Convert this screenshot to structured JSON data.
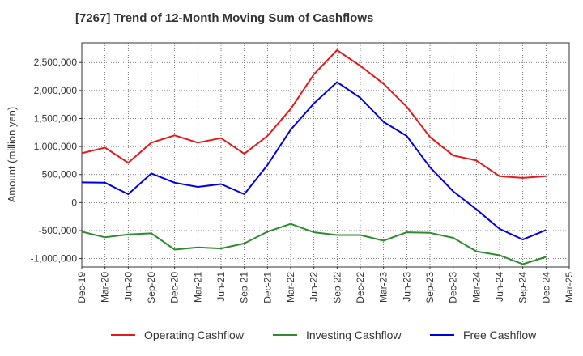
{
  "chart_data": {
    "type": "line",
    "title": "[7267]  Trend of 12-Month Moving Sum of Cashflows",
    "xlabel": "",
    "ylabel": "Amount (million yen)",
    "ylim": [
      -1150000,
      2850000
    ],
    "yticks": [
      -1000000,
      -500000,
      0,
      500000,
      1000000,
      1500000,
      2000000,
      2500000
    ],
    "ytick_labels": [
      "-1,000,000",
      "-500,000",
      "0",
      "500,000",
      "1,000,000",
      "1,500,000",
      "2,000,000",
      "2,500,000"
    ],
    "x_tick_labels": [
      "Dec-19",
      "Mar-20",
      "Jun-20",
      "Sep-20",
      "Dec-20",
      "Mar-21",
      "Jun-21",
      "Sep-21",
      "Dec-21",
      "Mar-22",
      "Jun-22",
      "Sep-22",
      "Dec-22",
      "Mar-23",
      "Jun-23",
      "Sep-23",
      "Dec-23",
      "Mar-24",
      "Jun-24",
      "Sep-24",
      "Dec-24",
      "Mar-25"
    ],
    "grid": true,
    "legend_position": "bottom",
    "series": [
      {
        "name": "Operating Cashflow",
        "color": "#e31a1c",
        "values": [
          880000,
          980000,
          710000,
          1070000,
          1200000,
          1070000,
          1150000,
          870000,
          1190000,
          1670000,
          2290000,
          2720000,
          2440000,
          2120000,
          1710000,
          1170000,
          840000,
          750000,
          470000,
          440000,
          470000
        ]
      },
      {
        "name": "Investing Cashflow",
        "color": "#2e8b2e",
        "values": [
          -520000,
          -620000,
          -570000,
          -550000,
          -840000,
          -800000,
          -820000,
          -730000,
          -520000,
          -380000,
          -530000,
          -580000,
          -580000,
          -680000,
          -530000,
          -540000,
          -630000,
          -870000,
          -940000,
          -1100000,
          -970000
        ]
      },
      {
        "name": "Free Cashflow",
        "color": "#0000e0",
        "values": [
          360000,
          355000,
          150000,
          520000,
          355000,
          280000,
          330000,
          150000,
          670000,
          1300000,
          1770000,
          2150000,
          1870000,
          1440000,
          1190000,
          630000,
          200000,
          -120000,
          -470000,
          -660000,
          -490000
        ]
      }
    ]
  }
}
